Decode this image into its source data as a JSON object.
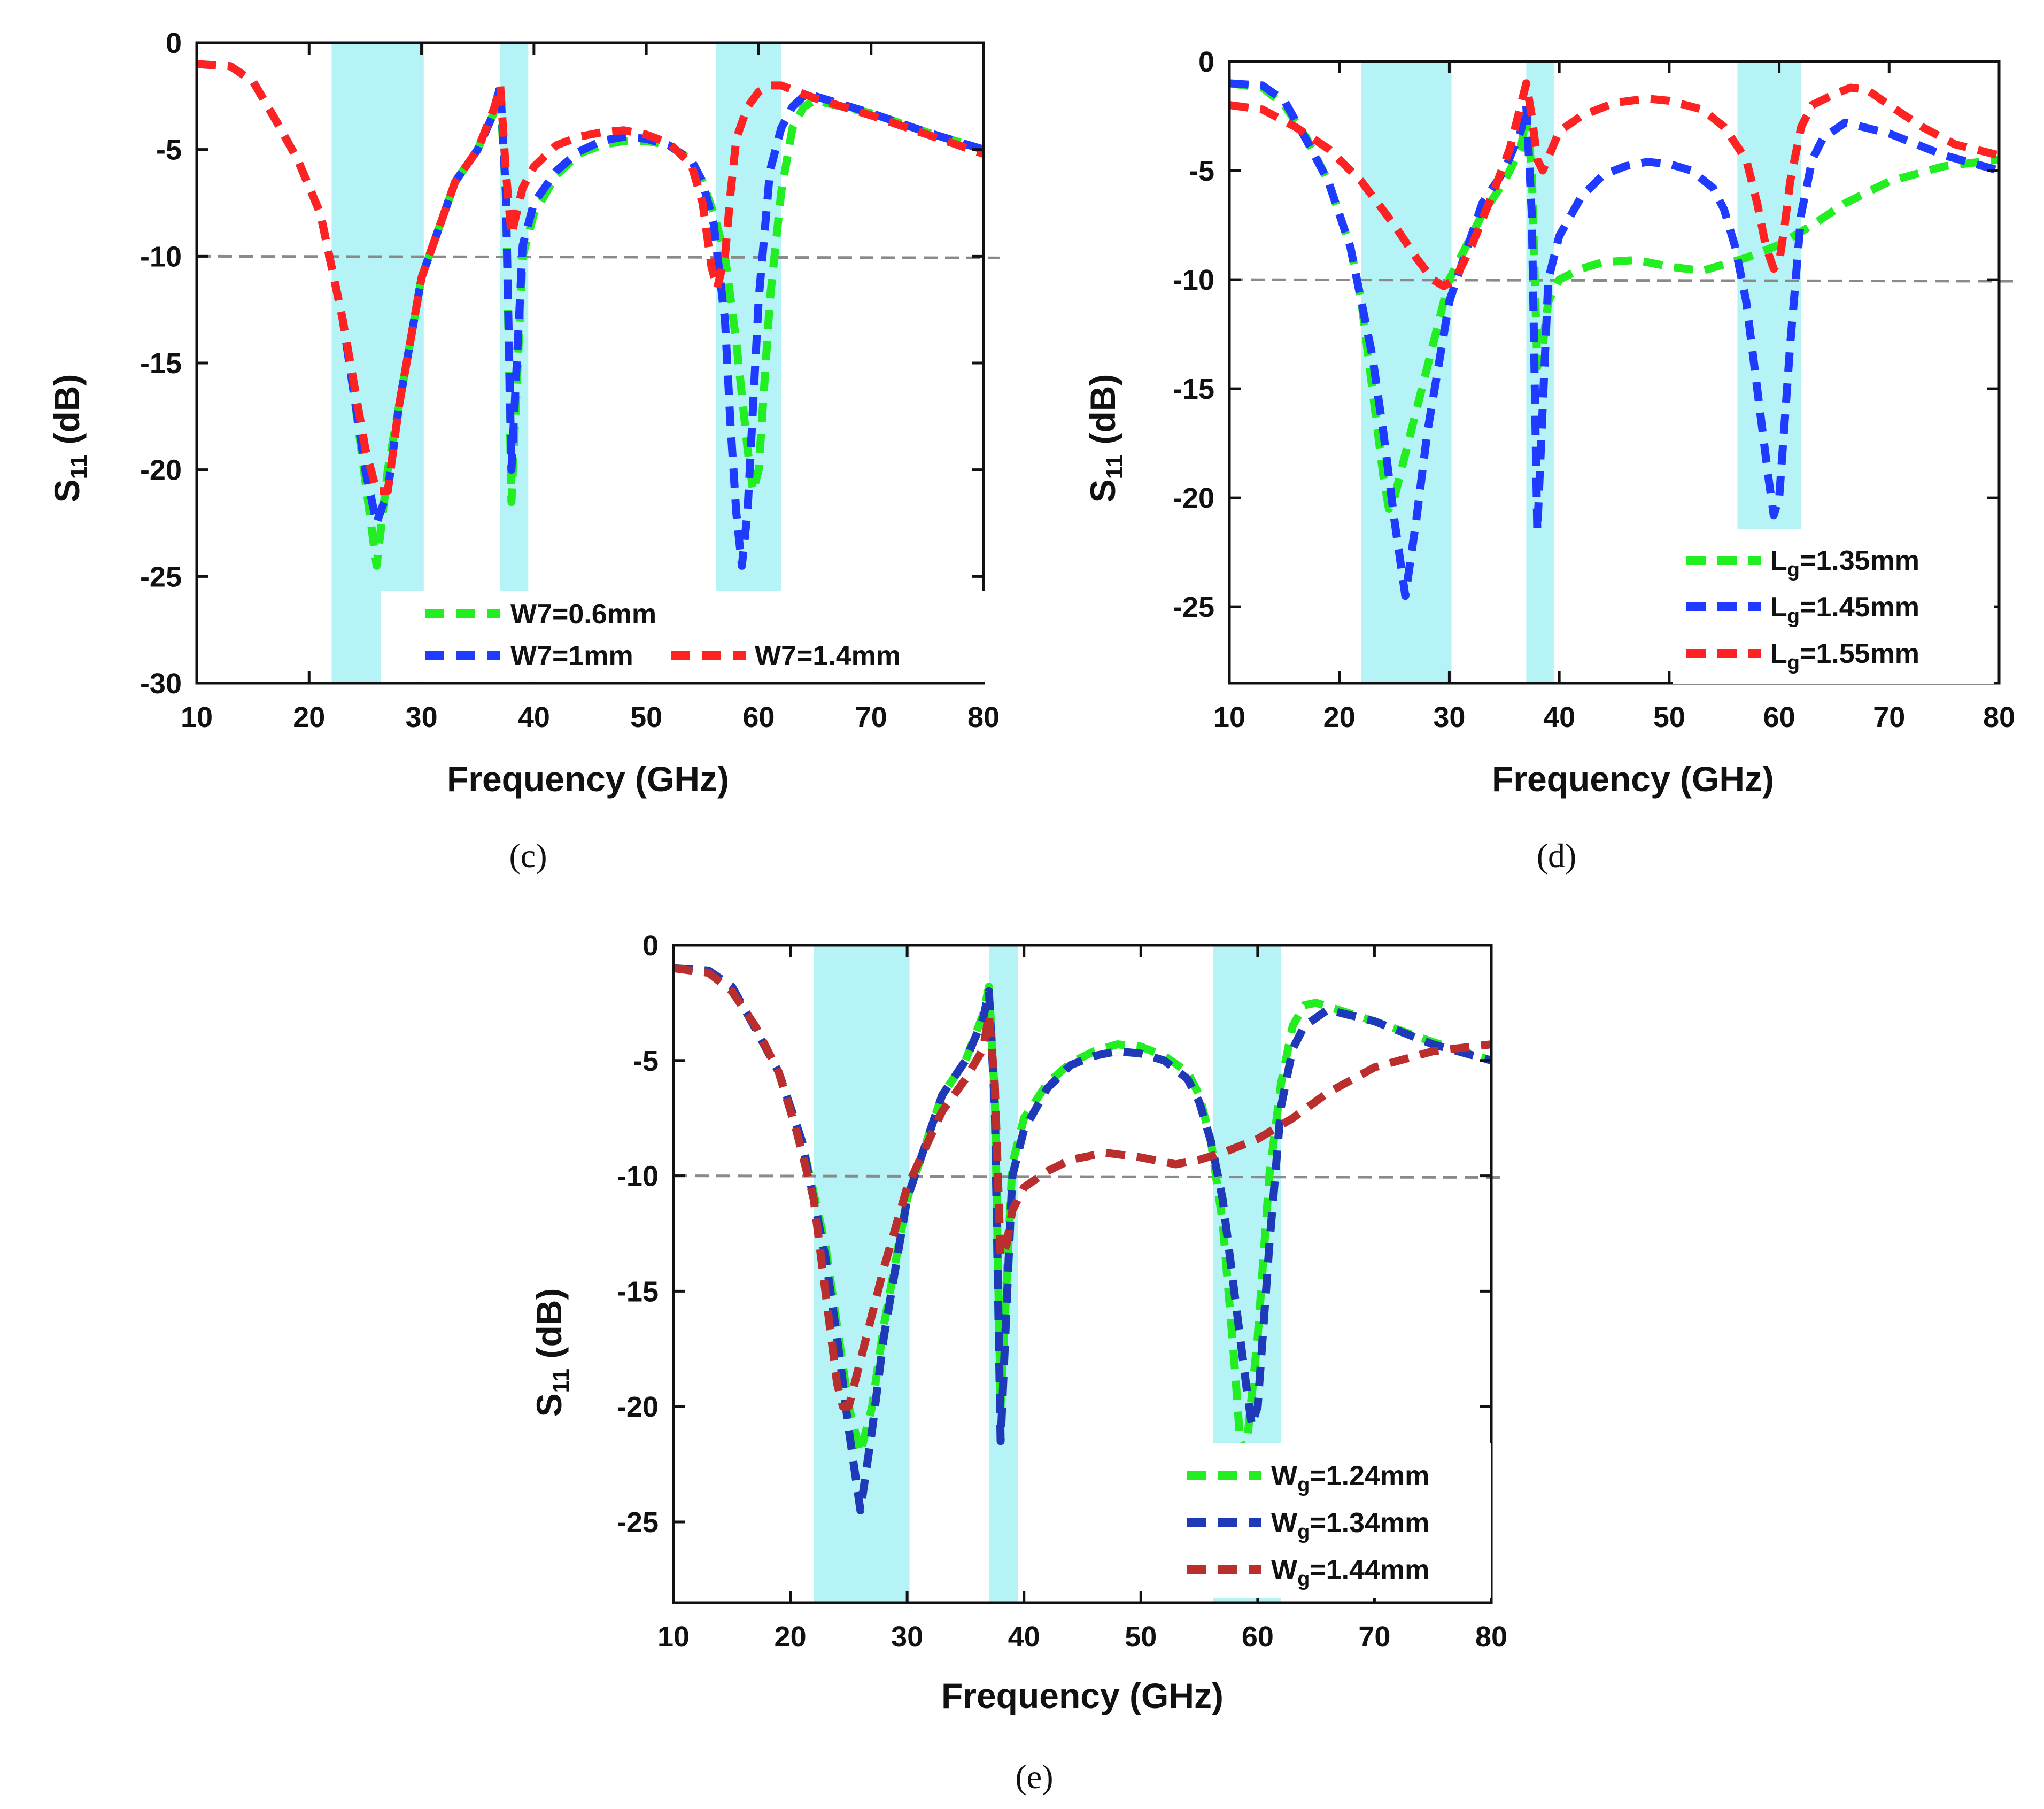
{
  "chart_data": [
    {
      "type": "line",
      "panel": "c",
      "caption": "(c)",
      "xlabel": "Frequency (GHz)",
      "ylabel_main": "S",
      "ylabel_sub": "11",
      "ylabel_unit": " (dB)",
      "xlim": [
        10,
        80
      ],
      "ylim": [
        -30,
        0
      ],
      "xticks": [
        10,
        20,
        30,
        40,
        50,
        60,
        70,
        80
      ],
      "yticks": [
        0,
        -5,
        -10,
        -15,
        -20,
        -25,
        -30
      ],
      "reference_line": -10,
      "bands": [
        [
          22,
          30.2
        ],
        [
          37,
          39.5
        ],
        [
          56.2,
          62
        ]
      ],
      "series": [
        {
          "name": "W7=0.6mm",
          "color": "#22ee22",
          "x": [
            10,
            13,
            15,
            17,
            19,
            21,
            23,
            24,
            25,
            26,
            27,
            28,
            30,
            33,
            35,
            36.5,
            37,
            37.5,
            38,
            39,
            40,
            42,
            44,
            46,
            48,
            50,
            52,
            54,
            55,
            56,
            57,
            58,
            59,
            59.5,
            60,
            61,
            62,
            63,
            64,
            65,
            70,
            75,
            80
          ],
          "y": [
            -1,
            -1.1,
            -1.8,
            -3.6,
            -5.5,
            -8,
            -13,
            -16.5,
            -20.5,
            -24.5,
            -20,
            -17,
            -11,
            -6.5,
            -5,
            -3.2,
            -2.5,
            -7,
            -21.5,
            -10,
            -8,
            -6.2,
            -5.2,
            -4.8,
            -4.6,
            -4.6,
            -4.8,
            -5.5,
            -6.5,
            -8,
            -10,
            -14,
            -19,
            -21,
            -20,
            -12,
            -7,
            -4,
            -3,
            -2.7,
            -3.3,
            -4.2,
            -5
          ]
        },
        {
          "name": "W7=1mm",
          "color": "#1f3bff",
          "x": [
            10,
            13,
            15,
            17,
            19,
            21,
            23,
            24,
            25,
            26,
            27,
            28,
            30,
            33,
            35,
            36.5,
            37,
            37.5,
            38,
            39,
            40,
            42,
            44,
            46,
            48,
            50,
            52,
            54,
            55,
            56,
            57,
            57.5,
            58,
            58.5,
            59,
            60,
            61,
            62,
            63,
            64,
            65,
            70,
            75,
            80
          ],
          "y": [
            -1,
            -1.1,
            -1.8,
            -3.6,
            -5.5,
            -8,
            -13,
            -16.5,
            -20,
            -22.5,
            -21,
            -17,
            -11,
            -6.5,
            -5,
            -3.2,
            -2,
            -7,
            -20,
            -9.5,
            -7.5,
            -6,
            -5.1,
            -4.6,
            -4.4,
            -4.5,
            -4.8,
            -5.5,
            -6.5,
            -8.5,
            -13,
            -18,
            -22,
            -24.5,
            -22,
            -12,
            -6,
            -4,
            -3,
            -2.5,
            -2.5,
            -3.3,
            -4.2,
            -5
          ]
        },
        {
          "name": "W7=1.4mm",
          "color": "#ff2222",
          "x": [
            10,
            13,
            15,
            17,
            19,
            21,
            23,
            24,
            25,
            26,
            27,
            28,
            30,
            33,
            35,
            36.5,
            37,
            37.5,
            38,
            39,
            40,
            42,
            44,
            46,
            48,
            50,
            52,
            54,
            55,
            55.8,
            56.3,
            57,
            57.5,
            58,
            59,
            60,
            61,
            62,
            63,
            65,
            70,
            75,
            80
          ],
          "y": [
            -1,
            -1.1,
            -1.8,
            -3.6,
            -5.5,
            -8,
            -13,
            -16,
            -19,
            -21,
            -21,
            -17,
            -11,
            -6.5,
            -5,
            -3,
            -2,
            -6,
            -9,
            -6.8,
            -5.8,
            -4.8,
            -4.4,
            -4.2,
            -4.1,
            -4.3,
            -4.7,
            -5.7,
            -7.5,
            -10.5,
            -11.5,
            -10,
            -7,
            -4.5,
            -3,
            -2.3,
            -2,
            -2,
            -2.2,
            -2.6,
            -3.4,
            -4.3,
            -5.2
          ]
        }
      ],
      "legend_rows": [
        [
          "W7=0.6mm"
        ],
        [
          "W7=1mm",
          "W7=1.4mm"
        ]
      ]
    },
    {
      "type": "line",
      "panel": "d",
      "caption": "(d)",
      "xlabel": "Frequency (GHz)",
      "ylabel_main": "S",
      "ylabel_sub": "11",
      "ylabel_unit": " (dB)",
      "xlim": [
        10,
        80
      ],
      "ylim": [
        -28.5,
        0
      ],
      "xticks": [
        10,
        20,
        30,
        40,
        50,
        60,
        70,
        80
      ],
      "yticks": [
        0,
        -5,
        -10,
        -15,
        -20,
        -25
      ],
      "reference_line": -10,
      "bands": [
        [
          22,
          30.2
        ],
        [
          37,
          39.5
        ],
        [
          56.2,
          62
        ]
      ],
      "series": [
        {
          "name_main": "L",
          "name_sub": "g",
          "name_rest": "=1.35mm",
          "color": "#22ee22",
          "x": [
            10,
            13,
            15,
            17,
            19,
            21,
            22,
            23,
            24,
            24.5,
            25,
            26,
            27,
            28,
            30,
            33,
            35,
            36.5,
            37,
            37.5,
            38,
            38.5,
            39,
            40,
            42,
            44,
            47,
            50,
            53,
            55,
            57,
            60,
            63,
            66,
            70,
            75,
            80
          ],
          "y": [
            -1,
            -1.2,
            -2,
            -3.5,
            -5.5,
            -8.5,
            -11,
            -15,
            -19,
            -20.5,
            -20,
            -18,
            -16,
            -14,
            -10,
            -7,
            -5.5,
            -4,
            -2.5,
            -5,
            -14,
            -13,
            -11,
            -10,
            -9.5,
            -9.2,
            -9.1,
            -9.4,
            -9.6,
            -9.3,
            -9,
            -8.4,
            -7.5,
            -6.5,
            -5.5,
            -4.8,
            -4.5
          ]
        },
        {
          "name_main": "L",
          "name_sub": "g",
          "name_rest": "=1.45mm",
          "color": "#1f3bff",
          "x": [
            10,
            13,
            15,
            17,
            19,
            21,
            23,
            24,
            25,
            26,
            27,
            28,
            30,
            33,
            35,
            36.5,
            37,
            37.5,
            38,
            39,
            40,
            42,
            44,
            46,
            48,
            50,
            52,
            54,
            55,
            56,
            57,
            58,
            59,
            59.5,
            60,
            61,
            62,
            63,
            64,
            66,
            70,
            75,
            80
          ],
          "y": [
            -1,
            -1.1,
            -1.8,
            -3.6,
            -5.5,
            -8.5,
            -13.5,
            -17,
            -21,
            -24.5,
            -21,
            -17,
            -11,
            -6.5,
            -5,
            -3.2,
            -2,
            -7,
            -21.5,
            -10,
            -8,
            -6.2,
            -5.2,
            -4.8,
            -4.6,
            -4.7,
            -5,
            -5.8,
            -6.8,
            -8.5,
            -11,
            -15,
            -19,
            -20.8,
            -20,
            -13,
            -7,
            -4.5,
            -3.5,
            -2.8,
            -3.3,
            -4.3,
            -5
          ]
        },
        {
          "name_main": "L",
          "name_sub": "g",
          "name_rest": "=1.55mm",
          "color": "#ff2222",
          "x": [
            10,
            13,
            16,
            19,
            22,
            25,
            27,
            28.5,
            29.5,
            30.5,
            32,
            34,
            35.5,
            36.5,
            37,
            37.5,
            38,
            38.5,
            40,
            42,
            45,
            48,
            50,
            53,
            55,
            57,
            58,
            58.8,
            59.5,
            60,
            60.5,
            61,
            62,
            63,
            65,
            66.5,
            68,
            70,
            73,
            76,
            80
          ],
          "y": [
            -2,
            -2.2,
            -3,
            -4,
            -5.5,
            -7.5,
            -9,
            -10,
            -10.3,
            -10,
            -8.5,
            -6,
            -4,
            -2,
            -1,
            -2.5,
            -4.5,
            -5,
            -3.2,
            -2.5,
            -1.9,
            -1.7,
            -1.8,
            -2.2,
            -3,
            -4.5,
            -6.5,
            -8.5,
            -9.5,
            -9.2,
            -7.5,
            -5.5,
            -3,
            -2,
            -1.5,
            -1.2,
            -1.3,
            -2,
            -3,
            -3.8,
            -4.3
          ]
        }
      ]
    },
    {
      "type": "line",
      "panel": "e",
      "caption": "(e)",
      "xlabel": "Frequency (GHz)",
      "ylabel_main": "S",
      "ylabel_sub": "11",
      "ylabel_unit": " (dB)",
      "xlim": [
        10,
        80
      ],
      "ylim": [
        -28.5,
        0
      ],
      "xticks": [
        10,
        20,
        30,
        40,
        50,
        60,
        70,
        80
      ],
      "yticks": [
        0,
        -5,
        -10,
        -15,
        -20,
        -25
      ],
      "reference_line": -10,
      "bands": [
        [
          22,
          30.2
        ],
        [
          37,
          39.5
        ],
        [
          56.2,
          62
        ]
      ],
      "series": [
        {
          "name_main": "W",
          "name_sub": "g",
          "name_rest": "=1.24mm",
          "color": "#22ee22",
          "x": [
            10,
            13,
            15,
            17,
            19,
            21,
            23,
            24,
            25,
            26,
            27,
            28,
            30,
            33,
            35,
            36.5,
            37,
            37.5,
            38,
            39,
            40,
            42,
            44,
            46,
            48,
            50,
            52,
            54,
            55,
            56,
            57,
            58,
            58.5,
            59,
            60,
            61,
            62,
            63,
            64,
            65,
            70,
            75,
            80
          ],
          "y": [
            -1,
            -1.1,
            -1.8,
            -3.6,
            -5.5,
            -8.5,
            -13,
            -16.5,
            -20,
            -22,
            -20,
            -16.5,
            -11,
            -6.5,
            -5,
            -3,
            -1.8,
            -6.5,
            -20,
            -9.5,
            -7.5,
            -6,
            -5.1,
            -4.6,
            -4.3,
            -4.4,
            -4.8,
            -5.5,
            -6.5,
            -8.5,
            -12,
            -18,
            -21.5,
            -22,
            -17,
            -10,
            -6,
            -3.5,
            -2.6,
            -2.5,
            -3.3,
            -4.2,
            -5
          ]
        },
        {
          "name_main": "W",
          "name_sub": "g",
          "name_rest": "=1.34mm",
          "color": "#1f3ab8",
          "x": [
            10,
            13,
            15,
            17,
            19,
            21,
            23,
            24,
            25,
            26,
            27,
            28,
            30,
            33,
            35,
            36.5,
            37,
            37.5,
            38,
            39,
            40,
            42,
            44,
            46,
            48,
            50,
            52,
            54,
            55,
            56,
            57,
            58,
            59,
            59.5,
            60,
            61,
            62,
            63,
            64,
            66,
            70,
            75,
            80
          ],
          "y": [
            -1,
            -1.1,
            -1.8,
            -3.6,
            -5.5,
            -8.5,
            -13.5,
            -17,
            -21,
            -24.5,
            -21,
            -17,
            -11,
            -6.5,
            -5,
            -3.2,
            -2,
            -7,
            -21.5,
            -10,
            -8,
            -6.2,
            -5.2,
            -4.8,
            -4.6,
            -4.7,
            -5,
            -5.8,
            -6.8,
            -8.5,
            -11,
            -15,
            -19,
            -20.8,
            -20,
            -13,
            -7,
            -4.5,
            -3.5,
            -2.8,
            -3.3,
            -4.3,
            -5
          ]
        },
        {
          "name_main": "W",
          "name_sub": "g",
          "name_rest": "=1.44mm",
          "color": "#bb2e2e",
          "x": [
            10,
            13,
            15,
            17,
            19,
            20.5,
            22,
            23,
            24,
            24.5,
            25,
            26,
            27,
            28,
            30,
            33,
            35,
            36.5,
            37,
            37.5,
            38,
            38.5,
            39,
            40,
            42,
            44,
            47,
            50,
            53,
            55,
            57,
            60,
            63,
            66,
            70,
            75,
            80
          ],
          "y": [
            -1,
            -1.2,
            -2,
            -3.5,
            -5.5,
            -8,
            -11,
            -15,
            -19,
            -20,
            -20,
            -18,
            -16,
            -14,
            -10.5,
            -7.2,
            -5.8,
            -4.5,
            -3,
            -6,
            -13.5,
            -13,
            -11.5,
            -10.5,
            -9.8,
            -9.3,
            -9,
            -9.2,
            -9.5,
            -9.3,
            -9,
            -8.4,
            -7.5,
            -6.4,
            -5.3,
            -4.6,
            -4.3
          ]
        }
      ]
    }
  ]
}
